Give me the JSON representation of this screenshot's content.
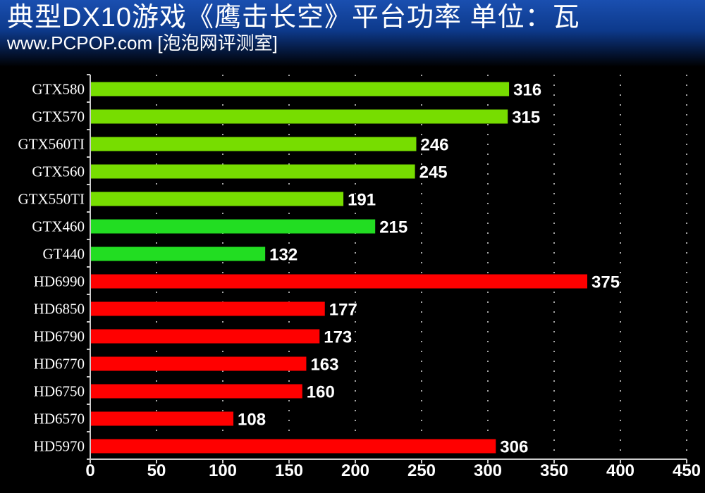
{
  "header": {
    "title": "典型DX10游戏《鹰击长空》平台功率 单位：瓦",
    "subtitle": "www.PCPOP.com [泡泡网评测室]"
  },
  "chart_data": {
    "type": "bar",
    "orientation": "horizontal",
    "title": "典型DX10游戏《鹰击长空》平台功率 单位：瓦",
    "xlabel": "",
    "ylabel": "",
    "xlim": [
      0,
      450
    ],
    "xticks": [
      0,
      50,
      100,
      150,
      200,
      250,
      300,
      350,
      400,
      450
    ],
    "grid": "vertical dashed",
    "categories": [
      "GTX580",
      "GTX570",
      "GTX560TI",
      "GTX560",
      "GTX550TI",
      "GTX460",
      "GT440",
      "HD6990",
      "HD6850",
      "HD6790",
      "HD6770",
      "HD6750",
      "HD6570",
      "HD5970"
    ],
    "values": [
      316,
      315,
      246,
      245,
      191,
      215,
      132,
      375,
      177,
      173,
      163,
      160,
      108,
      306
    ],
    "colors": [
      "#77dd00",
      "#77dd00",
      "#77dd00",
      "#77dd00",
      "#77dd00",
      "#22dd22",
      "#22dd22",
      "#ff0000",
      "#ff0000",
      "#ff0000",
      "#ff0000",
      "#ff0000",
      "#ff0000",
      "#ff0000"
    ]
  }
}
